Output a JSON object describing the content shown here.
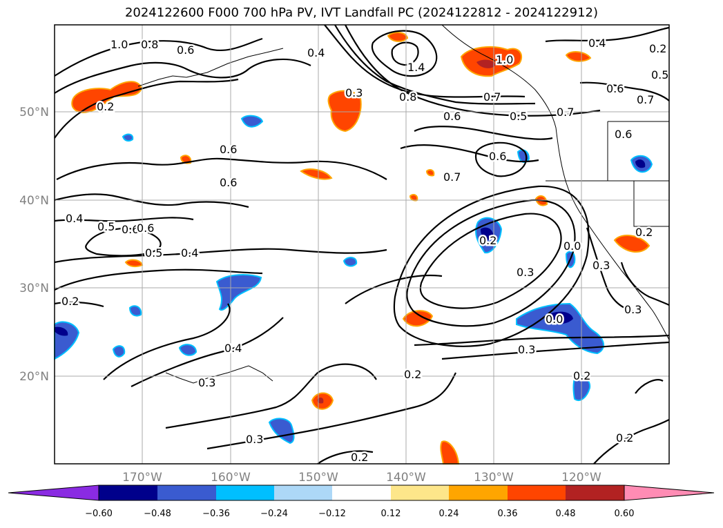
{
  "title": "2024122600 F000 700 hPa PV, IVT Landfall PC (2024122812 - 2024122912)",
  "map": {
    "lon_labels": [
      "170°W",
      "160°W",
      "150°W",
      "140°W",
      "130°W",
      "120°W"
    ],
    "lat_labels": [
      "50°N",
      "40°N",
      "30°N",
      "20°N"
    ],
    "contour_labels": [
      "1.0",
      "0.8",
      "0.6",
      "0.4",
      "0.3",
      "1.4",
      "0.8",
      "0.6",
      "0.7",
      "1.0",
      "0.4",
      "0.5",
      "0.6",
      "0.7",
      "0.6",
      "0.5",
      "0.7",
      "0.6",
      "0.6",
      "0.6",
      "0.7",
      "0.4",
      "0.5",
      "0.6",
      "0.6",
      "0.5",
      "0.4",
      "0.2",
      "0.2",
      "0.3",
      "0.3",
      "0.2",
      "0.3",
      "0.4",
      "0.3",
      "0.3",
      "0.2",
      "0.2",
      "0.2",
      "0.3",
      "0.2",
      "0.0",
      "0.0",
      "0.2",
      "0.2"
    ]
  },
  "colorbar": {
    "ticks": [
      "−0.60",
      "−0.48",
      "−0.36",
      "−0.24",
      "−0.12",
      "0.12",
      "0.24",
      "0.36",
      "0.48",
      "0.60"
    ],
    "colors": [
      "#8a2be2",
      "#00008b",
      "#3a5bd0",
      "#00bfff",
      "#add8f7",
      "#ffffff",
      "#fde68a",
      "#ffa500",
      "#ff4500",
      "#b22222",
      "#ff8cb4"
    ]
  }
}
